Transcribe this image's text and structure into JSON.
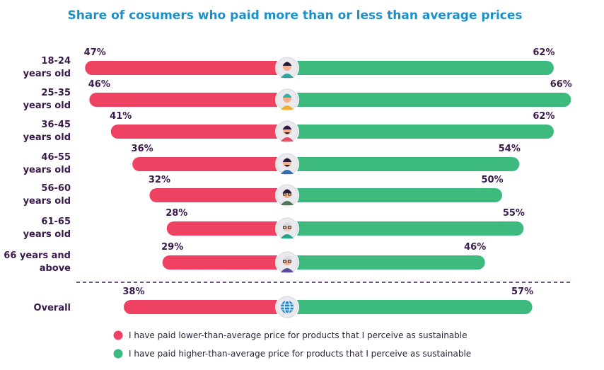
{
  "chart_data": {
    "type": "bar",
    "title": "Share of cosumers who paid more than or less than average prices",
    "categories": [
      "18-24 years old",
      "25-35 years old",
      "36-45 years old",
      "46-55 years old",
      "56-60 years old",
      "61-65 years old",
      "66 years and above"
    ],
    "category_lines": [
      [
        "18-24",
        "years old"
      ],
      [
        "25-35",
        "years old"
      ],
      [
        "36-45",
        "years old"
      ],
      [
        "46-55",
        "years old"
      ],
      [
        "56-60",
        "years old"
      ],
      [
        "61-65",
        "years old"
      ],
      [
        "66 years and",
        "above"
      ]
    ],
    "series": [
      {
        "name": "I have paid lower-than-average price for products that I perceive as sustainable",
        "values": [
          47,
          46,
          41,
          36,
          32,
          28,
          29
        ],
        "color": "#ef4262"
      },
      {
        "name": "I have paid higher-than-average price for products that I perceive as sustainable",
        "values": [
          62,
          66,
          62,
          54,
          50,
          55,
          46
        ],
        "color": "#3dbb7f"
      }
    ],
    "overall": {
      "label": "Overall",
      "values": [
        38,
        57
      ]
    },
    "value_suffix": "%",
    "legend_position": "bottom",
    "colors": {
      "title": "#1a8fc8",
      "text": "#3a1a4d",
      "divider": "#3a1a4d"
    },
    "icons": [
      "avatar-young-man-icon",
      "avatar-woman-green-hair-icon",
      "avatar-man-mustache-icon",
      "avatar-bearded-man-icon",
      "avatar-woman-glasses-icon",
      "avatar-elderly-man-glasses-icon",
      "avatar-senior-person-icon",
      "globe-icon"
    ]
  }
}
